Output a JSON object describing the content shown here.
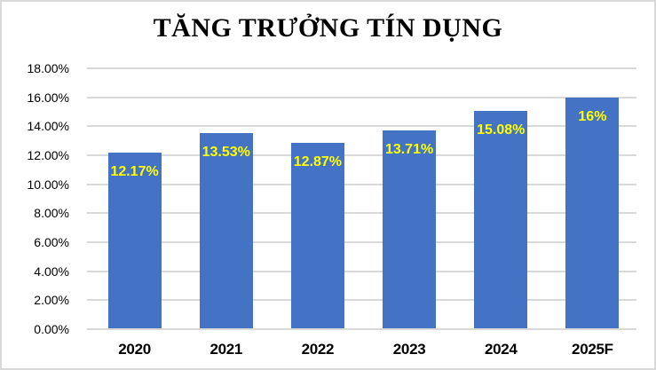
{
  "chart_data": {
    "type": "bar",
    "title": "TĂNG TRƯỞNG TÍN DỤNG",
    "categories": [
      "2020",
      "2021",
      "2022",
      "2023",
      "2024",
      "2025F"
    ],
    "values": [
      12.17,
      13.53,
      12.87,
      13.71,
      15.08,
      16
    ],
    "value_labels": [
      "12.17%",
      "13.53%",
      "12.87%",
      "13.71%",
      "15.08%",
      "16%"
    ],
    "y_ticks": [
      {
        "value": 0,
        "label": "0.00%"
      },
      {
        "value": 2,
        "label": "2.00%"
      },
      {
        "value": 4,
        "label": "4.00%"
      },
      {
        "value": 6,
        "label": "6.00%"
      },
      {
        "value": 8,
        "label": "8.00%"
      },
      {
        "value": 10,
        "label": "10.00%"
      },
      {
        "value": 12,
        "label": "12.00%"
      },
      {
        "value": 14,
        "label": "14.00%"
      },
      {
        "value": 16,
        "label": "16.00%"
      },
      {
        "value": 18,
        "label": "18.00%"
      }
    ],
    "ylim": [
      0,
      18
    ],
    "xlabel": "",
    "ylabel": "",
    "grid": true,
    "legend": false,
    "value_label_position": "inside-end",
    "colors": {
      "bar": "#4472C4",
      "value_label": "#FFFF00",
      "gridline": "#D9D9D9",
      "axis_line": "#D9D9D9",
      "text": "#000000",
      "border": "#D9D9D9",
      "background": "#FFFFFF"
    }
  }
}
